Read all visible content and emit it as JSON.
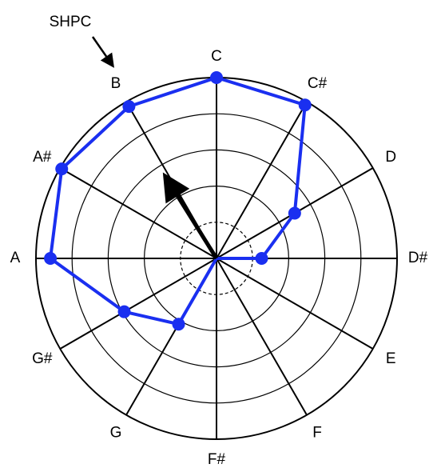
{
  "chart_data": {
    "type": "radar",
    "categories": [
      "C",
      "C#",
      "D",
      "D#",
      "E",
      "F",
      "F#",
      "G",
      "G#",
      "A",
      "A#",
      "B"
    ],
    "series": [
      {
        "color": "#1a2ff0",
        "values": [
          1.0,
          0.98,
          0.5,
          0.25,
          0,
          0,
          0,
          0.42,
          0.59,
          0.92,
          0.99,
          0.97
        ]
      }
    ],
    "rlim": [
      0,
      1
    ],
    "rticks": [
      0.2,
      0.4,
      0.6,
      0.8,
      1.0
    ],
    "vector": {
      "angle": 328,
      "magnitude": 0.53,
      "color": "#000000"
    },
    "annotation": {
      "text": "SHPC",
      "target": "B"
    }
  }
}
